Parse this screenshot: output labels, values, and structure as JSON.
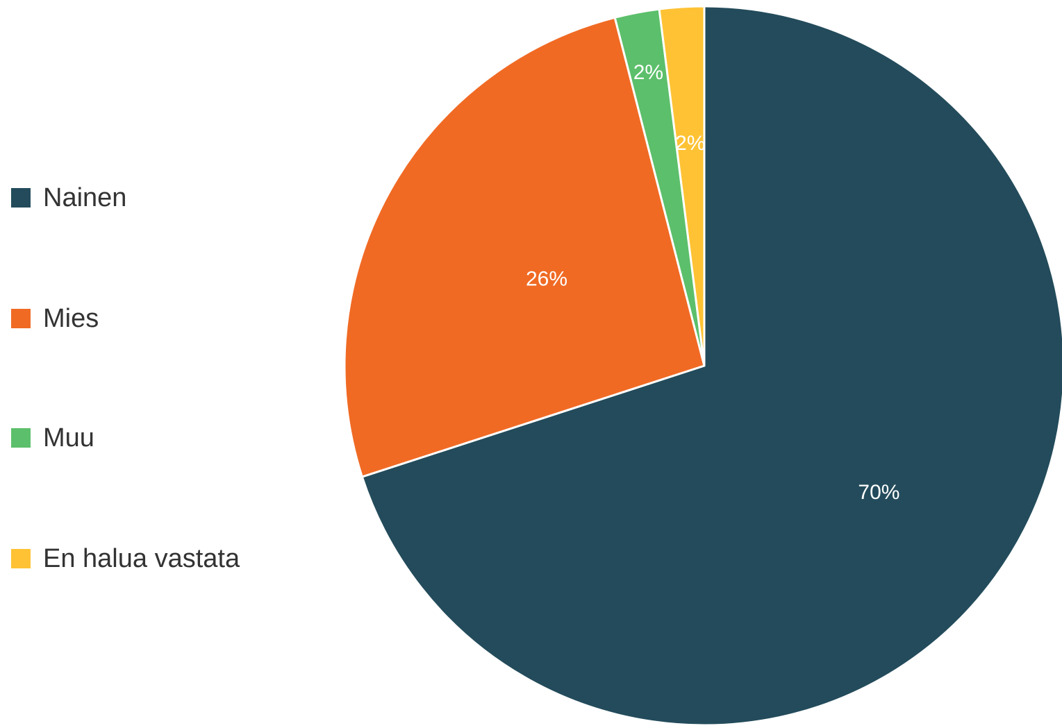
{
  "chart_data": {
    "type": "pie",
    "categories": [
      "Nainen",
      "Mies",
      "Muu",
      "En halua vastata"
    ],
    "values": [
      70,
      26,
      2,
      2
    ],
    "data_labels": [
      "70%",
      "26%",
      "2%",
      "2%"
    ],
    "colors": [
      "#234B5B",
      "#F06A24",
      "#5CBF6B",
      "#FEC234"
    ],
    "start_angle": "12 o'clock",
    "direction": "clockwise",
    "legend_position": "left",
    "label_color": "#ffffff",
    "slice_border_color": "#ffffff"
  }
}
